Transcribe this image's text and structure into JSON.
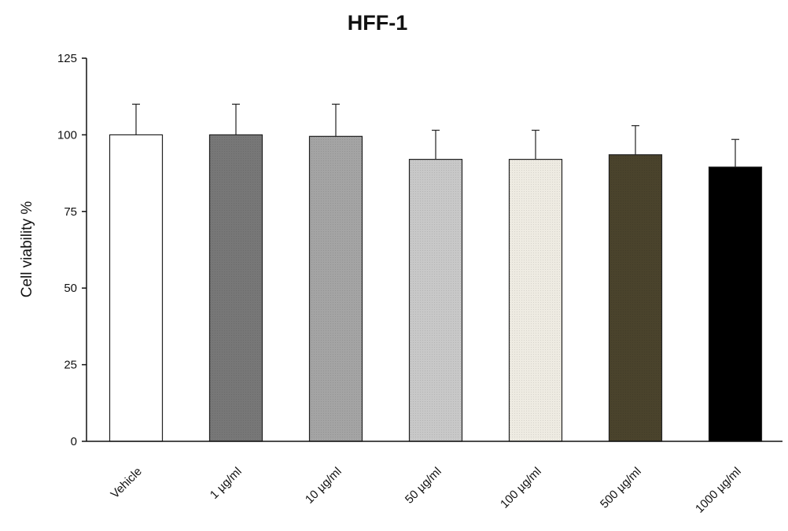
{
  "chart_data": {
    "type": "bar",
    "title": "HFF-1",
    "xlabel": "",
    "ylabel": "Cell viability  %",
    "ylim": [
      0,
      125
    ],
    "yticks": [
      0,
      25,
      50,
      75,
      100,
      125
    ],
    "grid": false,
    "legend": "none",
    "categories": [
      "Vehicle",
      "1 µg/ml",
      "10 µg/ml",
      "50 µg/ml",
      "100 µg/ml",
      "500 µg/ml",
      "1000 µg/ml"
    ],
    "values": [
      100,
      100,
      99.5,
      92,
      92,
      93.5,
      89.5
    ],
    "errors": [
      10,
      10,
      10.5,
      9.5,
      9.5,
      9.5,
      9
    ],
    "colors": [
      "#ffffff",
      "#777777",
      "#a4a4a4",
      "#c8c8c8",
      "#eeebe2",
      "#4a432c",
      "#000000"
    ]
  }
}
